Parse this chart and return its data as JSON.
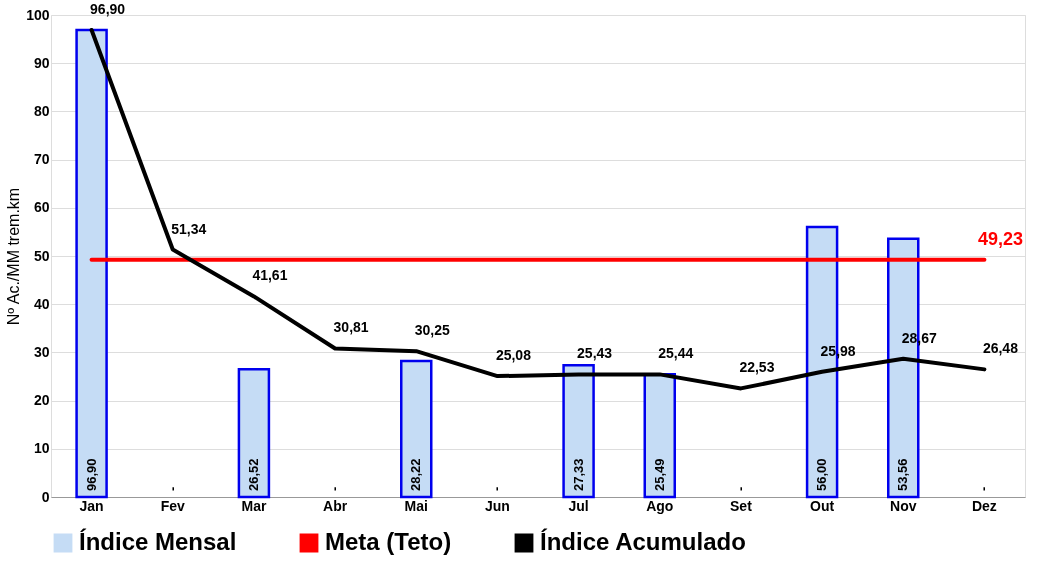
{
  "chart_data": {
    "type": "bar",
    "ylabel": "Nº Ac./MM trem.km",
    "categories": [
      "Jan",
      "Fev",
      "Mar",
      "Abr",
      "Mai",
      "Jun",
      "Jul",
      "Ago",
      "Set",
      "Out",
      "Nov",
      "Dez"
    ],
    "series": [
      {
        "name": "Índice Mensal",
        "color": "#c5dcf5",
        "values": [
          96.9,
          null,
          26.52,
          null,
          28.22,
          null,
          27.33,
          25.49,
          null,
          56.0,
          53.56,
          null
        ],
        "value_labels": [
          "96,90",
          "-",
          "26,52",
          "-",
          "28,22",
          "-",
          "27,33",
          "25,49",
          "-",
          "56,00",
          "53,56",
          "-"
        ]
      },
      {
        "name": "Meta (Teto)",
        "type": "line",
        "color": "#ff0000",
        "values": [
          49.23,
          49.23,
          49.23,
          49.23,
          49.23,
          49.23,
          49.23,
          49.23,
          49.23,
          49.23,
          49.23,
          49.23
        ],
        "value_labels": [
          null,
          null,
          null,
          null,
          null,
          null,
          null,
          null,
          null,
          null,
          null,
          "49,23"
        ]
      },
      {
        "name": "Índice Acumulado",
        "type": "line",
        "color": "#000000",
        "values": [
          96.9,
          51.34,
          41.61,
          30.81,
          30.25,
          25.08,
          25.43,
          25.44,
          22.53,
          25.98,
          28.67,
          26.48
        ],
        "value_labels": [
          "96,90",
          "51,34",
          "41,61",
          "30,81",
          "30,25",
          "25,08",
          "25,43",
          "25,44",
          "22,53",
          "25,98",
          "28,67",
          "26,48"
        ]
      }
    ],
    "ylim": [
      0,
      100
    ],
    "yticks": [
      0,
      10,
      20,
      30,
      40,
      50,
      60,
      70,
      80,
      90,
      100
    ],
    "grid": "y",
    "legend": "bottom"
  }
}
